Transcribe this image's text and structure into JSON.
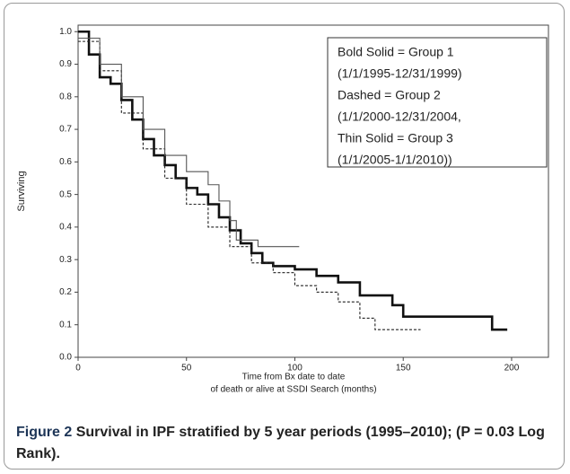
{
  "chart_data": {
    "type": "line",
    "step": true,
    "ylabel": "Surviving",
    "xlabel": [
      "Time from Bx date to date",
      "of death or alive at SSDI Search (months)"
    ],
    "xlim": [
      0,
      217
    ],
    "ylim": [
      0,
      1.02
    ],
    "xticks": [
      0,
      50,
      100,
      150,
      200
    ],
    "yticks": [
      {
        "value": 0,
        "label": "0.0"
      },
      0.1,
      0.2,
      0.3,
      0.4,
      0.5,
      0.6,
      0.7,
      0.8,
      0.9,
      {
        "value": 1,
        "label": "1.0"
      }
    ],
    "series": [
      {
        "name": "Bold Solid = Group 1",
        "period": "(1/1/1995-12/31/1999)",
        "color": "#111111",
        "width": 2.6,
        "dash": "none",
        "x": [
          0,
          5,
          10,
          15,
          20,
          25,
          30,
          35,
          40,
          45,
          50,
          55,
          60,
          65,
          70,
          75,
          80,
          85,
          90,
          100,
          110,
          120,
          130,
          145,
          150,
          191,
          198
        ],
        "values": [
          1.0,
          0.93,
          0.86,
          0.84,
          0.79,
          0.73,
          0.67,
          0.62,
          0.59,
          0.55,
          0.52,
          0.5,
          0.47,
          0.43,
          0.39,
          0.35,
          0.32,
          0.29,
          0.28,
          0.27,
          0.25,
          0.23,
          0.19,
          0.16,
          0.125,
          0.085,
          0.085
        ]
      },
      {
        "name": "Dashed = Group 2",
        "period": "(1/1/2000-12/31/2004,",
        "color": "#222222",
        "width": 1.1,
        "dash": "3 2",
        "x": [
          0,
          10,
          20,
          30,
          40,
          50,
          60,
          70,
          80,
          90,
          100,
          110,
          120,
          130,
          137,
          158
        ],
        "values": [
          0.97,
          0.88,
          0.75,
          0.64,
          0.55,
          0.47,
          0.4,
          0.34,
          0.29,
          0.26,
          0.22,
          0.2,
          0.17,
          0.12,
          0.085,
          0.085
        ]
      },
      {
        "name": "Thin Solid = Group 3",
        "period": "(1/1/2005-1/1/2010))",
        "color": "#555555",
        "width": 1.1,
        "dash": "none",
        "x": [
          0,
          10,
          20,
          30,
          40,
          50,
          60,
          65,
          70,
          73,
          83,
          102
        ],
        "values": [
          0.98,
          0.9,
          0.8,
          0.7,
          0.62,
          0.57,
          0.53,
          0.48,
          0.42,
          0.36,
          0.34,
          0.34
        ]
      }
    ]
  },
  "caption": {
    "label": "Figure 2",
    "text": "Survival in IPF stratified by 5 year periods (1995–2010); (P = 0.03 Log Rank)."
  }
}
